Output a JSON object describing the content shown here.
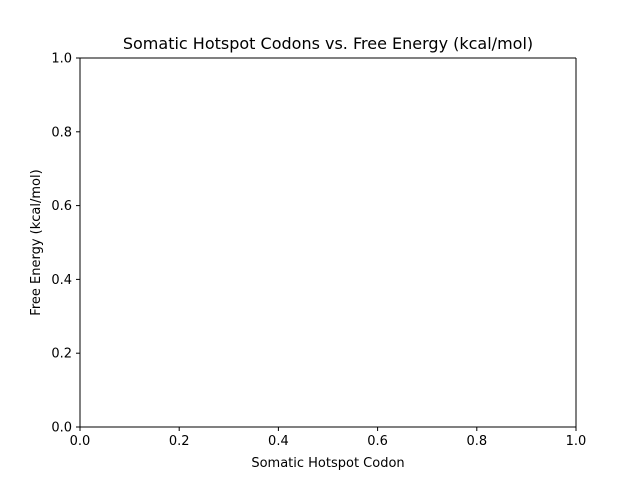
{
  "chart_data": {
    "type": "scatter",
    "title": "Somatic Hotspot Codons vs. Free Energy (kcal/mol)",
    "xlabel": "Somatic Hotspot Codon",
    "ylabel": "Free Energy (kcal/mol)",
    "xlim": [
      0.0,
      1.0
    ],
    "ylim": [
      0.0,
      1.0
    ],
    "xticks": [
      0.0,
      0.2,
      0.4,
      0.6,
      0.8,
      1.0
    ],
    "yticks": [
      0.0,
      0.2,
      0.4,
      0.6,
      0.8,
      1.0
    ],
    "xtick_labels": [
      "0.0",
      "0.2",
      "0.4",
      "0.6",
      "0.8",
      "1.0"
    ],
    "ytick_labels": [
      "0.0",
      "0.2",
      "0.4",
      "0.6",
      "0.8",
      "1.0"
    ],
    "grid": false,
    "series": []
  }
}
